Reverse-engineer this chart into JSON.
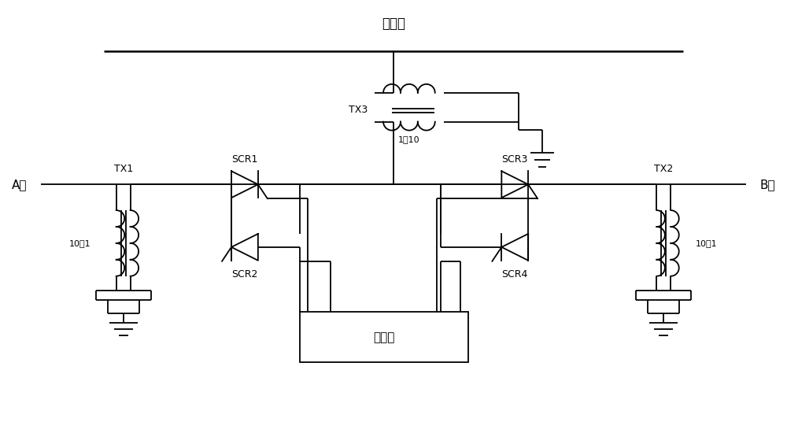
{
  "title": "中性段",
  "background_color": "#ffffff",
  "line_color": "#000000",
  "fig_width": 10.0,
  "fig_height": 5.69,
  "labels": {
    "title": "中性段",
    "A_phase": "A相",
    "B_phase": "B相",
    "TX1": "TX1",
    "TX2": "TX2",
    "TX3": "TX3",
    "SCR1": "SCR1",
    "SCR2": "SCR2",
    "SCR3": "SCR3",
    "SCR4": "SCR4",
    "TX1_ratio": "10：1",
    "TX2_ratio": "10：1",
    "TX3_ratio": "1：10",
    "controller": "控制器"
  }
}
